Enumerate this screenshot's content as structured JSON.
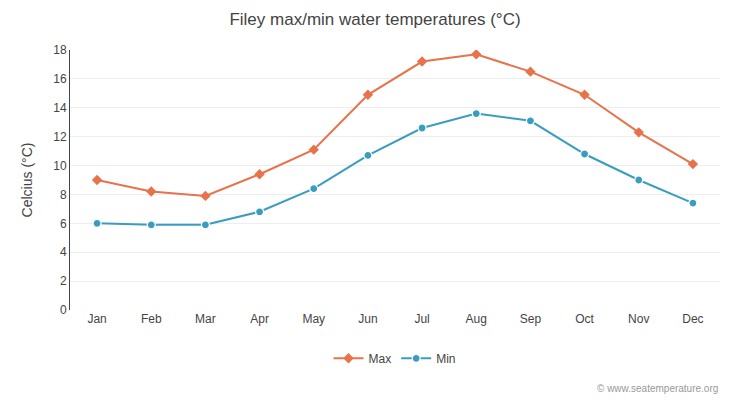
{
  "chart_data": {
    "type": "line",
    "title": "Filey max/min water temperatures (°C)",
    "y_label": "Celcius (°C)",
    "categories": [
      "Jan",
      "Feb",
      "Mar",
      "Apr",
      "May",
      "Jun",
      "Jul",
      "Aug",
      "Sep",
      "Oct",
      "Nov",
      "Dec"
    ],
    "series": [
      {
        "name": "Max",
        "color": "#e8724a",
        "marker": "diamond",
        "values": [
          9.0,
          8.2,
          7.9,
          9.4,
          11.1,
          14.9,
          17.2,
          17.7,
          16.5,
          14.9,
          12.3,
          10.1
        ]
      },
      {
        "name": "Min",
        "color": "#3a9dbf",
        "marker": "circle",
        "values": [
          6.0,
          5.9,
          5.9,
          6.8,
          8.4,
          10.7,
          12.6,
          13.6,
          13.1,
          10.8,
          9.0,
          7.4
        ]
      }
    ],
    "ylim": [
      0,
      18
    ],
    "yticks": [
      0,
      2,
      4,
      6,
      8,
      10,
      12,
      14,
      16,
      18
    ],
    "grid": true,
    "legend": "bottom",
    "annotations": [
      "© www.seatemperature.org"
    ]
  }
}
